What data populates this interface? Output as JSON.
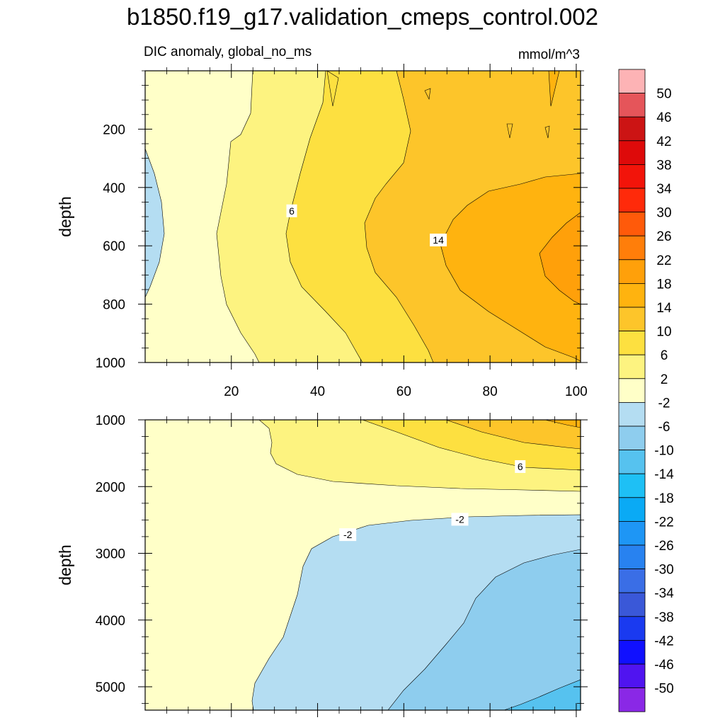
{
  "title": "b1850.f19_g17.validation_cmeps_control.002",
  "subtitle": "DIC anomaly, global_no_ms",
  "units": "mmol/m^3",
  "chart_data": [
    {
      "type": "contour",
      "panel": "upper",
      "xlabel": "",
      "ylabel": "depth",
      "xlim": [
        0,
        101
      ],
      "ylim": [
        1000,
        0
      ],
      "x_ticks": [
        20,
        40,
        60,
        80,
        100
      ],
      "y_ticks": [
        200,
        400,
        600,
        800,
        1000
      ],
      "contour_labels": [
        {
          "text": "6",
          "x": 34,
          "y": 480
        },
        {
          "text": "14",
          "x": 68,
          "y": 580
        }
      ]
    },
    {
      "type": "contour",
      "panel": "lower",
      "xlabel": "",
      "ylabel": "depth",
      "xlim": [
        0,
        101
      ],
      "ylim": [
        5350,
        1000
      ],
      "x_ticks": [
        20,
        40,
        60,
        80,
        100
      ],
      "y_ticks": [
        1000,
        2000,
        3000,
        4000,
        5000
      ],
      "contour_labels": [
        {
          "text": "6",
          "x": 87,
          "y": 1700
        },
        {
          "text": "-2",
          "x": 47,
          "y": 2720
        },
        {
          "text": "-2",
          "x": 73,
          "y": 2490
        }
      ]
    }
  ],
  "colorbar": {
    "labels": [
      "50",
      "46",
      "42",
      "38",
      "34",
      "30",
      "26",
      "22",
      "18",
      "14",
      "10",
      "6",
      "2",
      "-2",
      "-6",
      "-10",
      "-14",
      "-18",
      "-22",
      "-26",
      "-30",
      "-34",
      "-38",
      "-42",
      "-46",
      "-50"
    ],
    "colors": [
      "#fdb3b5",
      "#e5555a",
      "#cc1414",
      "#de0a0a",
      "#f2140a",
      "#ff2a0a",
      "#ff5a0a",
      "#ff7e0a",
      "#ffa00a",
      "#ffb30f",
      "#fdc52a",
      "#fde040",
      "#fdf380",
      "#ffffc8",
      "#b4ddf2",
      "#8ecdee",
      "#56c2ef",
      "#1ec0f5",
      "#0aaaf5",
      "#1e96f5",
      "#2882f0",
      "#3a6ee6",
      "#3a58d8",
      "#1a3af0",
      "#1010ff",
      "#5014f0",
      "#8a28e6"
    ]
  },
  "colors": {
    "neg6": "#8ecdee",
    "neg2": "#b4ddf2",
    "zero": "#ffffc8",
    "pos2": "#fdf380",
    "pos6": "#fde040",
    "pos10": "#fdc52a",
    "pos14": "#ffb30f",
    "pos18": "#ffa00a",
    "neg10": "#56c2ef"
  }
}
